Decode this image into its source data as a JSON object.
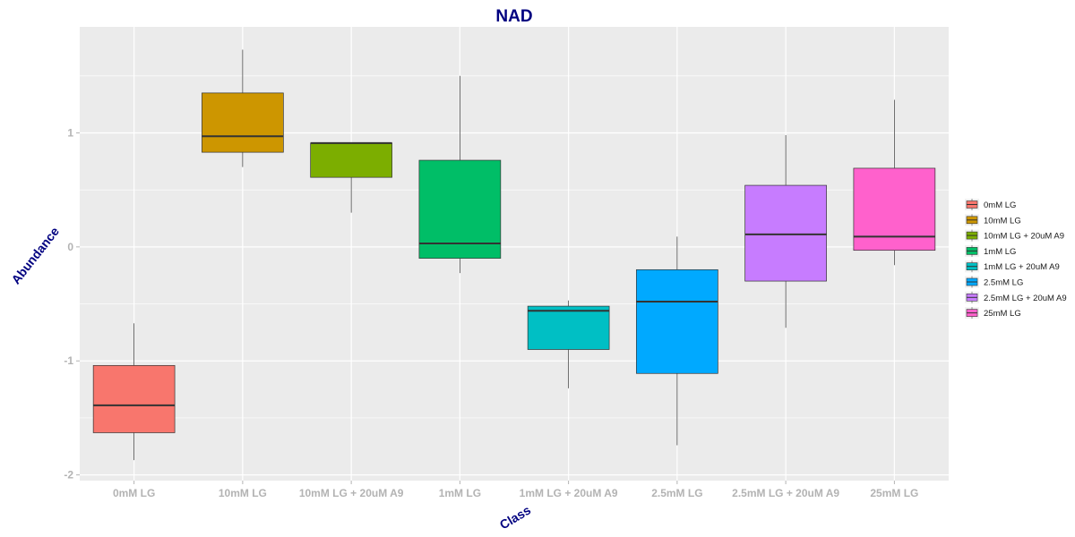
{
  "chart_data": {
    "type": "box",
    "title": "NAD",
    "xlabel": "Class",
    "ylabel": "Abundance",
    "ylim": [
      -2.05,
      1.93
    ],
    "yticks": [
      -2,
      -1,
      0,
      1
    ],
    "grid": true,
    "legend_position": "right",
    "categories": [
      "0mM LG",
      "10mM LG",
      "10mM LG + 20uM A9",
      "1mM LG",
      "1mM LG + 20uM A9",
      "2.5mM LG",
      "2.5mM LG + 20uM A9",
      "25mM LG"
    ],
    "series": [
      {
        "name": "0mM LG",
        "color": "#F8766D",
        "min": -1.87,
        "q1": -1.63,
        "median": -1.39,
        "q3": -1.04,
        "max": -0.67
      },
      {
        "name": "10mM LG",
        "color": "#CD9600",
        "min": 0.7,
        "q1": 0.83,
        "median": 0.97,
        "q3": 1.35,
        "max": 1.73
      },
      {
        "name": "10mM LG + 20uM A9",
        "color": "#7CAE00",
        "min": 0.3,
        "q1": 0.61,
        "median": 0.91,
        "q3": 0.91,
        "max": 0.91
      },
      {
        "name": "1mM LG",
        "color": "#00BE67",
        "min": -0.23,
        "q1": -0.1,
        "median": 0.03,
        "q3": 0.76,
        "max": 1.5
      },
      {
        "name": "1mM LG + 20uM A9",
        "color": "#00BFC4",
        "min": -1.24,
        "q1": -0.9,
        "median": -0.56,
        "q3": -0.52,
        "max": -0.47
      },
      {
        "name": "2.5mM LG",
        "color": "#00A9FF",
        "min": -1.74,
        "q1": -1.11,
        "median": -0.48,
        "q3": -0.2,
        "max": 0.09
      },
      {
        "name": "2.5mM LG + 20uM A9",
        "color": "#C77CFF",
        "min": -0.71,
        "q1": -0.3,
        "median": 0.11,
        "q3": 0.54,
        "max": 0.98
      },
      {
        "name": "25mM LG",
        "color": "#FF61CC",
        "min": -0.16,
        "q1": -0.03,
        "median": 0.09,
        "q3": 0.69,
        "max": 1.29
      }
    ]
  }
}
